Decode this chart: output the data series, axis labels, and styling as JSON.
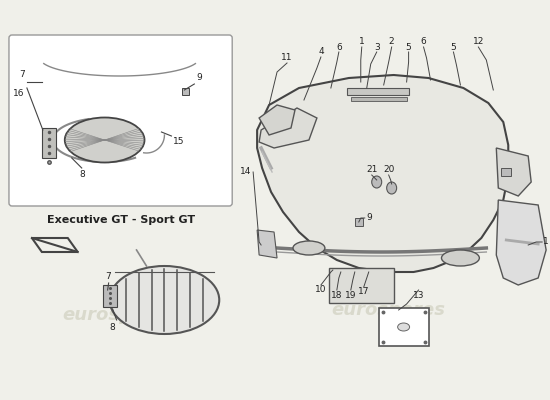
{
  "bg_color": "#f0f0ea",
  "line_color": "#444444",
  "text_color": "#222222",
  "light_line": "#888888",
  "label_fontsize": 6.5,
  "watermark_text": "eurospares",
  "watermark_color": "#b8b8a0",
  "watermark_alpha": 0.4,
  "watermark_fontsize": 13,
  "subtitle": "Executive GT - Sport GT",
  "box_edge": "#999999",
  "part_fill": "#e8e8e2",
  "part_edge": "#444444"
}
